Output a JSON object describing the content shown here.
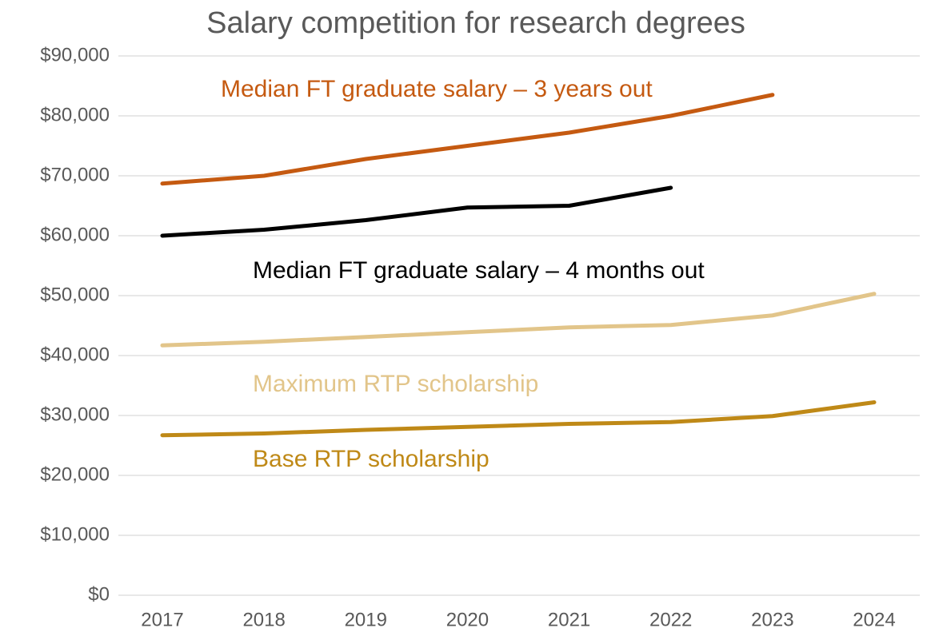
{
  "chart_data": {
    "type": "line",
    "title": "Salary competition for research degrees",
    "categories": [
      "2017",
      "2018",
      "2019",
      "2020",
      "2021",
      "2022",
      "2023",
      "2024"
    ],
    "series": [
      {
        "name": "Median FT graduate salary – 3 years out",
        "color": "#c55a11",
        "values": [
          68700,
          70000,
          72800,
          75000,
          77200,
          80000,
          83500,
          null
        ]
      },
      {
        "name": "Median FT graduate salary – 4 months out",
        "color": "#000000",
        "values": [
          60000,
          61000,
          62600,
          64700,
          65000,
          68000,
          null,
          null
        ]
      },
      {
        "name": "Maximum RTP scholarship",
        "color": "#e2c58a",
        "values": [
          41700,
          42300,
          43100,
          43900,
          44700,
          45100,
          46700,
          50300
        ]
      },
      {
        "name": "Base RTP scholarship",
        "color": "#bf8917",
        "values": [
          26700,
          27000,
          27600,
          28100,
          28600,
          28900,
          29900,
          32200
        ]
      }
    ],
    "ylim": [
      0,
      90000
    ],
    "yticks": [
      {
        "value": 0,
        "label": "$0"
      },
      {
        "value": 10000,
        "label": "$10,000"
      },
      {
        "value": 20000,
        "label": "$20,000"
      },
      {
        "value": 30000,
        "label": "$30,000"
      },
      {
        "value": 40000,
        "label": "$40,000"
      },
      {
        "value": 50000,
        "label": "$50,000"
      },
      {
        "value": 60000,
        "label": "$60,000"
      },
      {
        "value": 70000,
        "label": "$70,000"
      },
      {
        "value": 80000,
        "label": "$80,000"
      },
      {
        "value": 90000,
        "label": "$90,000"
      }
    ],
    "grid": true
  }
}
